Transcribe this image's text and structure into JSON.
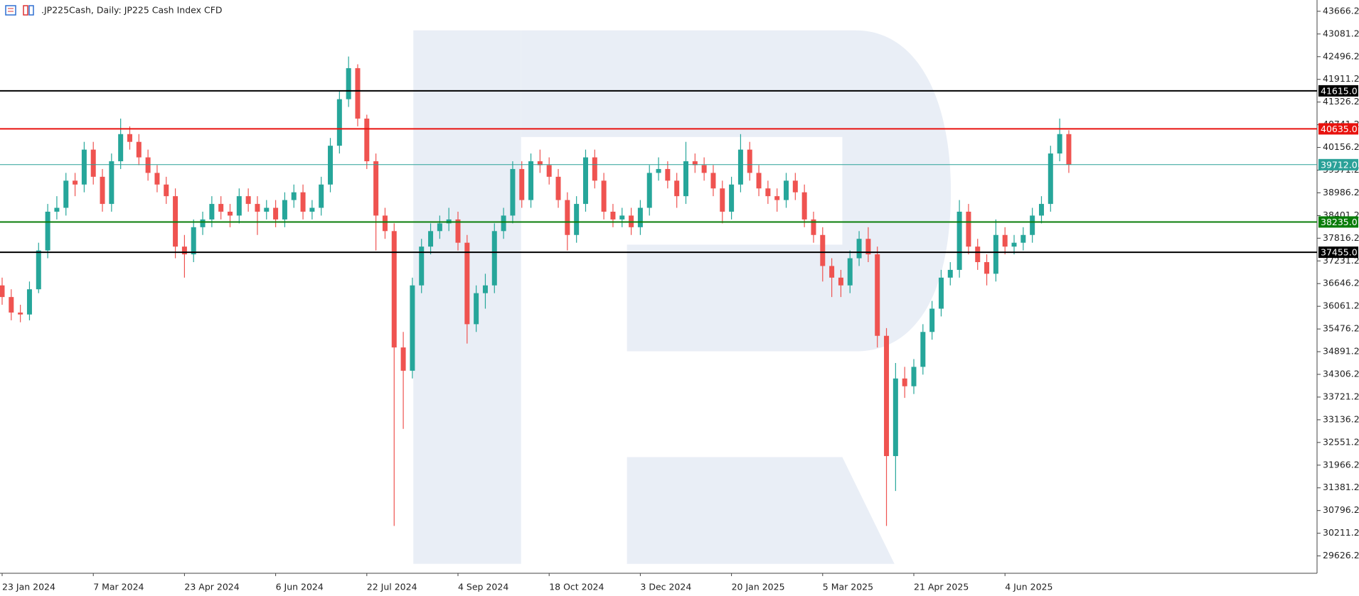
{
  "chart_data": {
    "type": "candlestick",
    "title": ".JP225Cash, Daily:  JP225 Cash Index CFD",
    "up_color": "#26a69a",
    "down_color": "#ef5350",
    "ylim": [
      29179,
      43957
    ],
    "yticks": [
      29626.2,
      30211.2,
      30796.2,
      31381.2,
      31966.2,
      32551.2,
      33136.2,
      33721.2,
      34306.2,
      34891.2,
      35476.2,
      36061.2,
      36646.2,
      37231.2,
      37816.2,
      38401.2,
      38986.2,
      39571.2,
      40156.2,
      40741.2,
      41326.2,
      41911.2,
      42496.2,
      43081.2,
      43666.2
    ],
    "levels": [
      {
        "value": 41615,
        "label": "41615.0",
        "color": "#000000"
      },
      {
        "value": 40635,
        "label": "40635.0",
        "color": "#e8130f"
      },
      {
        "value": 39712,
        "label": "39712.0",
        "color": "#2aa198"
      },
      {
        "value": 38235,
        "label": "38235.0",
        "color": "#0a7d0a"
      },
      {
        "value": 37455,
        "label": "37455.0",
        "color": "#000000"
      }
    ],
    "categories": [
      "23 Jan 2024",
      null,
      null,
      null,
      null,
      null,
      null,
      null,
      null,
      null,
      "7 Mar 2024",
      null,
      null,
      null,
      null,
      null,
      null,
      null,
      null,
      null,
      "23 Apr 2024",
      null,
      null,
      null,
      null,
      null,
      null,
      null,
      null,
      null,
      "6 Jun 2024",
      null,
      null,
      null,
      null,
      null,
      null,
      null,
      null,
      null,
      "22 Jul 2024",
      null,
      null,
      null,
      null,
      null,
      null,
      null,
      null,
      null,
      "4 Sep 2024",
      null,
      null,
      null,
      null,
      null,
      null,
      null,
      null,
      null,
      "18 Oct 2024",
      null,
      null,
      null,
      null,
      null,
      null,
      null,
      null,
      null,
      "3 Dec 2024",
      null,
      null,
      null,
      null,
      null,
      null,
      null,
      null,
      null,
      "20 Jan 2025",
      null,
      null,
      null,
      null,
      null,
      null,
      null,
      null,
      null,
      "5 Mar 2025",
      null,
      null,
      null,
      null,
      null,
      null,
      null,
      null,
      null,
      "21 Apr 2025",
      null,
      null,
      null,
      null,
      null,
      null,
      null,
      null,
      null,
      "4 Jun 2025",
      null,
      null,
      null,
      null,
      null,
      null,
      null
    ],
    "candles": [
      [
        36600,
        36800,
        36100,
        36300
      ],
      [
        36300,
        36500,
        35700,
        35900
      ],
      [
        35900,
        36100,
        35650,
        35850
      ],
      [
        35850,
        36700,
        35700,
        36500
      ],
      [
        36500,
        37700,
        36400,
        37500
      ],
      [
        37500,
        38700,
        37300,
        38500
      ],
      [
        38500,
        38900,
        38300,
        38600
      ],
      [
        38600,
        39500,
        38400,
        39300
      ],
      [
        39300,
        39500,
        38900,
        39200
      ],
      [
        39200,
        40300,
        39000,
        40100
      ],
      [
        40100,
        40300,
        39200,
        39400
      ],
      [
        39400,
        39600,
        38500,
        38700
      ],
      [
        38700,
        40000,
        38500,
        39800
      ],
      [
        39800,
        40900,
        39600,
        40500
      ],
      [
        40500,
        40700,
        40100,
        40300
      ],
      [
        40300,
        40500,
        39700,
        39900
      ],
      [
        39900,
        40100,
        39300,
        39500
      ],
      [
        39500,
        39700,
        39000,
        39200
      ],
      [
        39200,
        39400,
        38700,
        38900
      ],
      [
        38900,
        39100,
        37300,
        37600
      ],
      [
        37600,
        37900,
        36800,
        37400
      ],
      [
        37400,
        38300,
        37200,
        38100
      ],
      [
        38100,
        38500,
        37900,
        38300
      ],
      [
        38300,
        38900,
        38100,
        38700
      ],
      [
        38700,
        38900,
        38300,
        38500
      ],
      [
        38500,
        38700,
        38100,
        38400
      ],
      [
        38400,
        39100,
        38200,
        38900
      ],
      [
        38900,
        39100,
        38500,
        38700
      ],
      [
        38700,
        38900,
        37900,
        38500
      ],
      [
        38500,
        38800,
        38300,
        38600
      ],
      [
        38600,
        38800,
        38100,
        38300
      ],
      [
        38300,
        39000,
        38100,
        38800
      ],
      [
        38800,
        39200,
        38600,
        39000
      ],
      [
        39000,
        39200,
        38300,
        38500
      ],
      [
        38500,
        38800,
        38300,
        38600
      ],
      [
        38600,
        39400,
        38400,
        39200
      ],
      [
        39200,
        40400,
        39000,
        40200
      ],
      [
        40200,
        41600,
        40000,
        41400
      ],
      [
        41400,
        42500,
        41200,
        42200
      ],
      [
        42200,
        42300,
        40700,
        40900
      ],
      [
        40900,
        41000,
        39600,
        39800
      ],
      [
        39800,
        40000,
        37500,
        38400
      ],
      [
        38400,
        38600,
        37800,
        38000
      ],
      [
        38000,
        38200,
        30400,
        35000
      ],
      [
        35000,
        35400,
        32900,
        34400
      ],
      [
        34400,
        36800,
        34200,
        36600
      ],
      [
        36600,
        37800,
        36400,
        37600
      ],
      [
        37600,
        38200,
        37400,
        38000
      ],
      [
        38000,
        38400,
        37800,
        38200
      ],
      [
        38200,
        38600,
        38000,
        38300
      ],
      [
        38300,
        38500,
        37500,
        37700
      ],
      [
        37700,
        37900,
        35100,
        35600
      ],
      [
        35600,
        36600,
        35400,
        36400
      ],
      [
        36400,
        36900,
        36000,
        36600
      ],
      [
        36600,
        38200,
        36400,
        38000
      ],
      [
        38000,
        38600,
        37800,
        38400
      ],
      [
        38400,
        39800,
        38200,
        39600
      ],
      [
        39600,
        39800,
        38600,
        38800
      ],
      [
        38800,
        40000,
        38600,
        39800
      ],
      [
        39800,
        40100,
        39500,
        39700
      ],
      [
        39700,
        39900,
        39200,
        39400
      ],
      [
        39400,
        39600,
        38600,
        38800
      ],
      [
        38800,
        39000,
        37500,
        37900
      ],
      [
        37900,
        38900,
        37700,
        38700
      ],
      [
        38700,
        40100,
        38500,
        39900
      ],
      [
        39900,
        40100,
        39100,
        39300
      ],
      [
        39300,
        39500,
        38300,
        38500
      ],
      [
        38500,
        38700,
        38100,
        38300
      ],
      [
        38300,
        38600,
        38100,
        38400
      ],
      [
        38400,
        38600,
        37900,
        38100
      ],
      [
        38100,
        38800,
        37900,
        38600
      ],
      [
        38600,
        39700,
        38400,
        39500
      ],
      [
        39500,
        39900,
        39300,
        39600
      ],
      [
        39600,
        39800,
        39100,
        39300
      ],
      [
        39300,
        39500,
        38600,
        38900
      ],
      [
        38900,
        40300,
        38700,
        39800
      ],
      [
        39800,
        40000,
        39500,
        39700
      ],
      [
        39700,
        39900,
        39300,
        39500
      ],
      [
        39500,
        39700,
        38900,
        39100
      ],
      [
        39100,
        39300,
        38200,
        38500
      ],
      [
        38500,
        39400,
        38300,
        39200
      ],
      [
        39200,
        40500,
        39000,
        40100
      ],
      [
        40100,
        40300,
        39300,
        39500
      ],
      [
        39500,
        39700,
        38900,
        39100
      ],
      [
        39100,
        39300,
        38700,
        38900
      ],
      [
        38900,
        39100,
        38500,
        38800
      ],
      [
        38800,
        39500,
        38600,
        39300
      ],
      [
        39300,
        39500,
        38800,
        39000
      ],
      [
        39000,
        39200,
        38100,
        38300
      ],
      [
        38300,
        38500,
        37700,
        37900
      ],
      [
        37900,
        38100,
        36700,
        37100
      ],
      [
        37100,
        37300,
        36300,
        36800
      ],
      [
        36800,
        37000,
        36300,
        36600
      ],
      [
        36600,
        37500,
        36400,
        37300
      ],
      [
        37300,
        38000,
        37100,
        37800
      ],
      [
        37800,
        38100,
        37200,
        37400
      ],
      [
        37400,
        37600,
        35000,
        35300
      ],
      [
        35300,
        35500,
        30400,
        32200
      ],
      [
        32200,
        34600,
        31300,
        34200
      ],
      [
        34200,
        34500,
        33700,
        34000
      ],
      [
        34000,
        34700,
        33800,
        34500
      ],
      [
        34500,
        35600,
        34300,
        35400
      ],
      [
        35400,
        36200,
        35200,
        36000
      ],
      [
        36000,
        37000,
        35800,
        36800
      ],
      [
        36800,
        37200,
        36600,
        37000
      ],
      [
        37000,
        38800,
        36800,
        38500
      ],
      [
        38500,
        38700,
        37400,
        37600
      ],
      [
        37600,
        37800,
        37000,
        37200
      ],
      [
        37200,
        37400,
        36600,
        36900
      ],
      [
        36900,
        38300,
        36700,
        37900
      ],
      [
        37900,
        38100,
        37400,
        37600
      ],
      [
        37600,
        37900,
        37400,
        37700
      ],
      [
        37700,
        38100,
        37500,
        37900
      ],
      [
        37900,
        38600,
        37700,
        38400
      ],
      [
        38400,
        38900,
        38200,
        38700
      ],
      [
        38700,
        40200,
        38500,
        40000
      ],
      [
        40000,
        40900,
        39800,
        40500
      ],
      [
        40500,
        40600,
        39500,
        39712
      ]
    ]
  }
}
